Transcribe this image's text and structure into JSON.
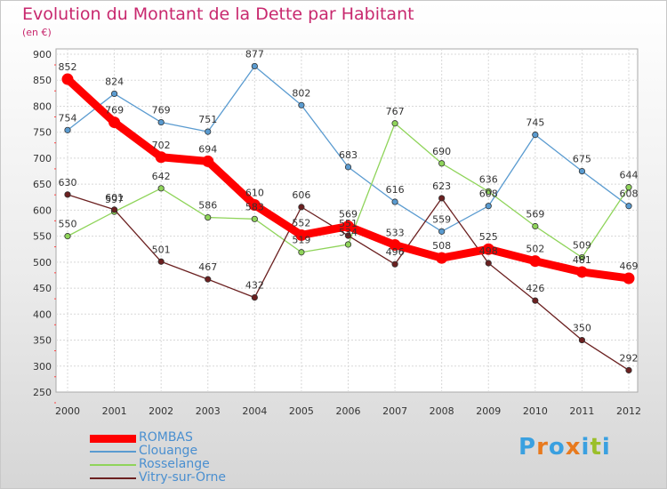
{
  "title": "Evolution du Montant de la Dette par Habitant",
  "subtitle": "(en €)",
  "brand": {
    "letters": [
      "P",
      "r",
      "o",
      "x",
      "i",
      "t",
      "i"
    ],
    "colors": [
      "#3aa0e0",
      "#e87a1e",
      "#3aa0e0",
      "#e87a1e",
      "#3aa0e0",
      "#9bbf2a",
      "#3aa0e0"
    ]
  },
  "chart_data": {
    "type": "line",
    "title": "Evolution du Montant de la Dette par Habitant",
    "ylabel": "(en €)",
    "xlabel": "",
    "x": [
      "2000",
      "2001",
      "2002",
      "2003",
      "2004",
      "2005",
      "2006",
      "2007",
      "2008",
      "2009",
      "2010",
      "2011",
      "2012"
    ],
    "ylim": [
      250,
      900
    ],
    "yticks": [
      "250",
      "300",
      "350",
      "400",
      "450",
      "500",
      "550",
      "600",
      "650",
      "700",
      "750",
      "800",
      "850",
      "900"
    ],
    "grid": true,
    "legend_position": "bottom-left",
    "series": [
      {
        "name": "ROMBAS",
        "color": "#ff0000",
        "values": [
          852,
          769,
          702,
          694,
          610,
          552,
          569,
          533,
          508,
          525,
          502,
          481,
          469
        ],
        "labels": [
          "852",
          "769",
          "702",
          "694",
          "610",
          "552",
          "569",
          "533",
          "508",
          "525",
          "502",
          "481",
          "469"
        ]
      },
      {
        "name": "Clouange",
        "color": "#5a9bd0",
        "values": [
          754,
          824,
          769,
          751,
          877,
          802,
          683,
          616,
          559,
          608,
          745,
          675,
          608
        ],
        "labels": [
          "754",
          "824",
          "769",
          "751",
          "877",
          "802",
          "683",
          "616",
          "559",
          "608",
          "745",
          "675",
          "608"
        ]
      },
      {
        "name": "Rosselange",
        "color": "#8fd45a",
        "values": [
          550,
          597,
          642,
          586,
          583,
          519,
          534,
          767,
          690,
          636,
          569,
          509,
          644
        ],
        "labels": [
          "550",
          "597",
          "642",
          "586",
          "583",
          "519",
          "534",
          "767",
          "690",
          "636",
          "569",
          "509",
          "644"
        ]
      },
      {
        "name": "Vitry-sur-Orne",
        "color": "#6b2020",
        "values": [
          630,
          601,
          501,
          467,
          432,
          606,
          551,
          496,
          623,
          498,
          426,
          350,
          292
        ],
        "labels": [
          "630",
          "601",
          "501",
          "467",
          "432",
          "606",
          "551",
          "496",
          "623",
          "498",
          "426",
          "350",
          "292"
        ]
      }
    ]
  }
}
